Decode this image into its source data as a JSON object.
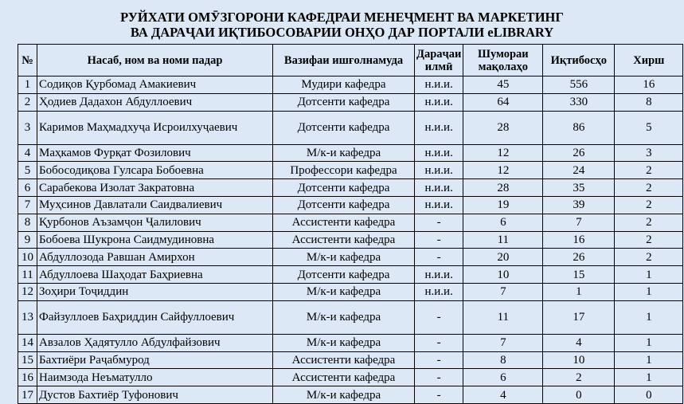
{
  "title": {
    "line1": "РУЙХАТИ ОМӮЗГОРОНИ КАФЕДРАИ МЕНЕҶМЕНТ ВА МАРКЕТИНГ",
    "line2": "ВА ДАРАҶАИ ИҚТИБОСОВАРИИ ОНҲО ДАР ПОРТАЛИ eLIBRARY"
  },
  "table": {
    "headers": [
      "№",
      "Насаб, ном ва номи падар",
      "Вазифаи ишғолнамуда",
      "Дараҷаи илмӣ",
      "Шумораи мақолаҳо",
      "Иқтибосҳо",
      "Хирш"
    ],
    "rows": [
      [
        "1",
        "Содиқов Қурбомад Амакиевич",
        "Мудири кафедра",
        "н.и.и.",
        "45",
        "556",
        "16"
      ],
      [
        "2",
        "Ҳодиев Дадахон Абдуллоевич",
        "Дотсенти кафедра",
        "н.и.и.",
        "64",
        "330",
        "8"
      ],
      [
        "3",
        "Каримов Маҳмадхуҷа Исроилхуҷаевич",
        "Дотсенти кафедра",
        "н.и.и.",
        "28",
        "86",
        "5"
      ],
      [
        "4",
        "Маҳкамов Фурқат Фозилович",
        "М/к-и кафедра",
        "н.и.и.",
        "12",
        "26",
        "3"
      ],
      [
        "5",
        "Бобосодиқова Гулсара Бобоевна",
        "Профессори кафедра",
        "н.и.и.",
        "12",
        "24",
        "2"
      ],
      [
        "6",
        "Сарабекова Изолат Закратовна",
        "Дотсенти кафедра",
        "н.и.и.",
        "28",
        "35",
        "2"
      ],
      [
        "7",
        "Муҳсинов Давлатали Саидвалиевич",
        "Дотсенти кафедра",
        "н.и.и.",
        "19",
        "39",
        "2"
      ],
      [
        "8",
        "Қурбонов Аъзамҷон Ҷалилович",
        "Ассистенти кафедра",
        "-",
        "6",
        "7",
        "2"
      ],
      [
        "9",
        "Бобоева Шукрона Саидмудиновна",
        "Ассистенти кафедра",
        "-",
        "11",
        "16",
        "2"
      ],
      [
        "10",
        "Абдуллозода Равшан Амирхон",
        "М/к-и кафедра",
        "-",
        "20",
        "26",
        "2"
      ],
      [
        "11",
        "Абдуллоева Шаҳодат Баҳриевна",
        "Дотсенти кафедра",
        "н.и.и.",
        "10",
        "15",
        "1"
      ],
      [
        "12",
        "Зоҳири Тоҷиддин",
        "М/к-и кафедра",
        "н.и.и.",
        "7",
        "1",
        "1"
      ],
      [
        "13",
        "Файзуллоев Баҳриддин Сайфуллоевич",
        "М/к-и кафедра",
        "-",
        "11",
        "17",
        "1"
      ],
      [
        "14",
        "Авзалов Ҳадятулло Абдулфайзович",
        "М/к-и кафедра",
        "-",
        "7",
        "4",
        "1"
      ],
      [
        "15",
        "Бахтиёри Раҷабмурод",
        "Ассистенти кафедра",
        "-",
        "8",
        "10",
        "1"
      ],
      [
        "16",
        "Наимзода Неъматулло",
        "Ассистенти кафедра",
        "-",
        "6",
        "2",
        "1"
      ],
      [
        "17",
        "Дустов Бахтиёр Туфонович",
        "М/к-и кафедра",
        "-",
        "4",
        "0",
        "0"
      ]
    ]
  }
}
